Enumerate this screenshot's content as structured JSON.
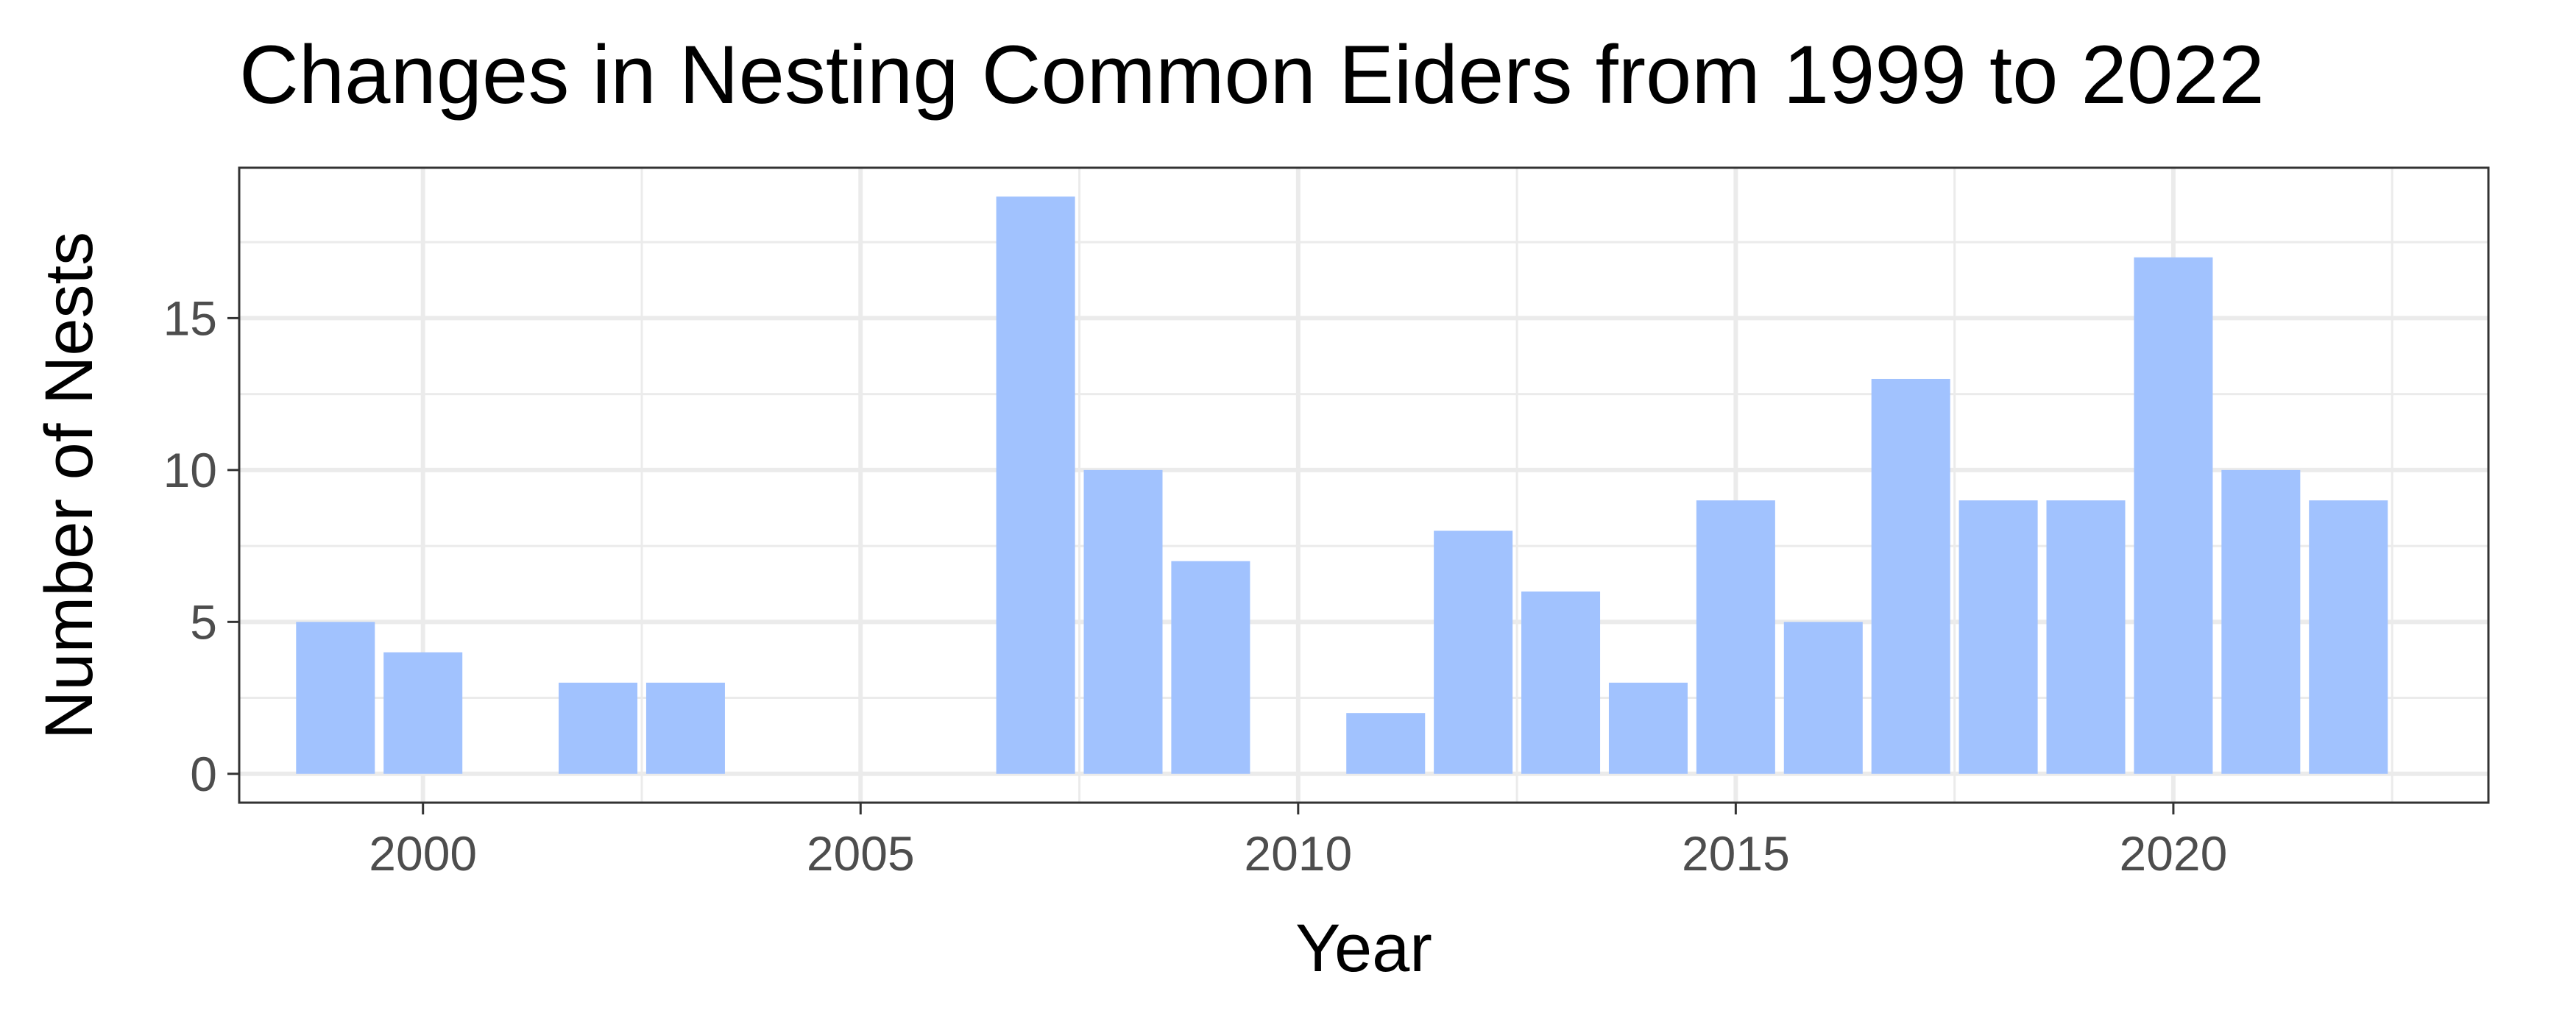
{
  "chart_data": {
    "type": "bar",
    "title": "Changes in Nesting Common Eiders from 1999 to 2022",
    "xlabel": "Year",
    "ylabel": "Number of Nests",
    "x": [
      1999,
      2000,
      2002,
      2003,
      2007,
      2008,
      2009,
      2011,
      2012,
      2013,
      2014,
      2015,
      2016,
      2017,
      2018,
      2019,
      2020,
      2021,
      2022
    ],
    "values": [
      5,
      4,
      3,
      3,
      19,
      10,
      7,
      2,
      8,
      6,
      3,
      9,
      5,
      13,
      9,
      9,
      17,
      10,
      9
    ],
    "xlim": [
      1997.9,
      2023.6
    ],
    "ylim": [
      -0.95,
      19.95
    ],
    "x_ticks": [
      2000,
      2005,
      2010,
      2015,
      2020
    ],
    "x_tick_labels": [
      "2000",
      "2005",
      "2010",
      "2015",
      "2020"
    ],
    "y_ticks": [
      0,
      5,
      10,
      15
    ],
    "y_tick_labels": [
      "0",
      "5",
      "10",
      "15"
    ],
    "grid": true,
    "legend": "none",
    "colors": {
      "bar": "#a1c2fe",
      "grid": "#ebebeb",
      "border": "#333333"
    }
  }
}
